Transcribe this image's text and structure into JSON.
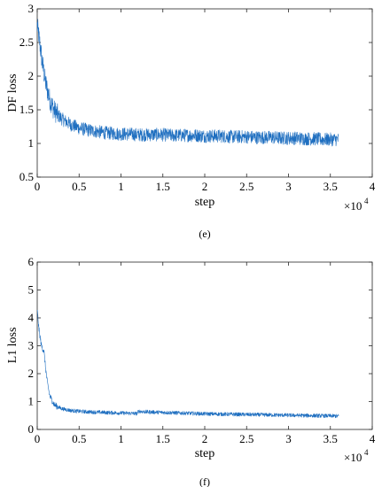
{
  "colors": {
    "line": "#1f6fc0",
    "axis": "#262626",
    "background": "#ffffff"
  },
  "chart_data": [
    {
      "type": "line",
      "panel": "(e)",
      "caption": "(e)",
      "xlabel": "step",
      "ylabel": "DF loss",
      "xlim": [
        0,
        40000
      ],
      "ylim": [
        0.5,
        3
      ],
      "x_ticks": [
        0,
        5000,
        10000,
        15000,
        20000,
        25000,
        30000,
        35000,
        40000
      ],
      "x_tick_labels": [
        "0",
        "0.5",
        "1",
        "1.5",
        "2",
        "2.5",
        "3",
        "3.5",
        "4"
      ],
      "y_ticks": [
        0.5,
        1,
        1.5,
        2,
        2.5,
        3
      ],
      "y_tick_labels": [
        "0.5",
        "1",
        "1.5",
        "2",
        "2.5",
        "3"
      ],
      "x_multiplier_base": "×10",
      "x_multiplier_exp": "4",
      "grid": false,
      "noise_amplitude": 0.1,
      "series": [
        {
          "x": [
            0,
            300,
            600,
            1000,
            1500,
            2000,
            2500,
            3000,
            4000,
            5000,
            6000,
            7000,
            8000,
            9000,
            10000,
            11000,
            12000,
            13000,
            14000,
            15000,
            16000,
            17000,
            18000,
            19000,
            20000,
            21000,
            22000,
            23000,
            24000,
            25000,
            26000,
            27000,
            28000,
            29000,
            30000,
            31000,
            32000,
            33000,
            34000,
            35000,
            36000
          ],
          "y": [
            2.75,
            2.5,
            2.2,
            1.9,
            1.65,
            1.5,
            1.42,
            1.36,
            1.28,
            1.23,
            1.2,
            1.18,
            1.16,
            1.15,
            1.14,
            1.14,
            1.13,
            1.13,
            1.13,
            1.13,
            1.12,
            1.12,
            1.12,
            1.12,
            1.11,
            1.11,
            1.11,
            1.1,
            1.1,
            1.1,
            1.09,
            1.09,
            1.09,
            1.08,
            1.08,
            1.08,
            1.07,
            1.07,
            1.06,
            1.06,
            1.06
          ]
        }
      ]
    },
    {
      "type": "line",
      "panel": "(f)",
      "caption": "(f)",
      "xlabel": "step",
      "ylabel": "L1 loss",
      "xlim": [
        0,
        40000
      ],
      "ylim": [
        0,
        6
      ],
      "x_ticks": [
        0,
        5000,
        10000,
        15000,
        20000,
        25000,
        30000,
        35000,
        40000
      ],
      "x_tick_labels": [
        "0",
        "0.5",
        "1",
        "1.5",
        "2",
        "2.5",
        "3",
        "3.5",
        "4"
      ],
      "y_ticks": [
        0,
        1,
        2,
        3,
        4,
        5,
        6
      ],
      "y_tick_labels": [
        "0",
        "1",
        "2",
        "3",
        "4",
        "5",
        "6"
      ],
      "x_multiplier_base": "×10",
      "x_multiplier_exp": "4",
      "grid": false,
      "noise_amplitude": 0.07,
      "series": [
        {
          "x": [
            0,
            200,
            500,
            800,
            1000,
            1200,
            1500,
            2000,
            2500,
            3000,
            4000,
            5000,
            6000,
            7000,
            8000,
            9000,
            10000,
            11000,
            11900,
            12100,
            13000,
            14000,
            15000,
            16000,
            17000,
            18000,
            19000,
            20000,
            22000,
            24000,
            26000,
            28000,
            30000,
            32000,
            34000,
            36000
          ],
          "y": [
            4.3,
            3.6,
            3.0,
            2.8,
            2.2,
            1.7,
            1.2,
            0.9,
            0.8,
            0.74,
            0.68,
            0.65,
            0.63,
            0.62,
            0.61,
            0.6,
            0.59,
            0.58,
            0.57,
            0.65,
            0.63,
            0.62,
            0.61,
            0.6,
            0.59,
            0.58,
            0.57,
            0.56,
            0.55,
            0.54,
            0.53,
            0.52,
            0.51,
            0.5,
            0.49,
            0.48
          ]
        }
      ]
    }
  ]
}
